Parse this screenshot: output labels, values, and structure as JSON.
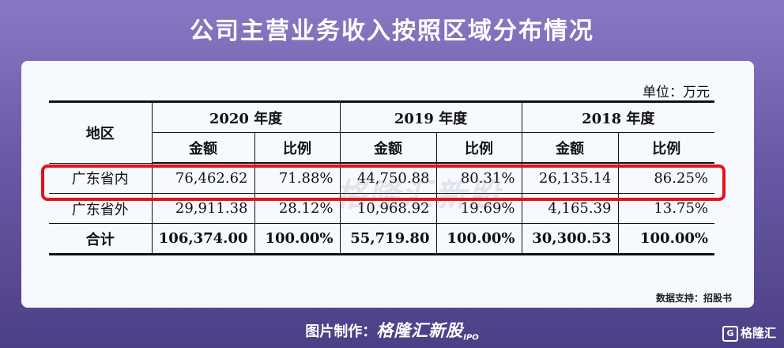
{
  "title": "公司主营业务收入按照区域分布情况",
  "unit": "单位：万元",
  "table": {
    "region_header": "地区",
    "years": [
      "2020 年度",
      "2019 年度",
      "2018 年度"
    ],
    "sub_headers": [
      "金额",
      "比例",
      "金额",
      "比例",
      "金额",
      "比例"
    ],
    "rows": [
      {
        "region": "广东省内",
        "cells": [
          "76,462.62",
          "71.88%",
          "44,750.88",
          "80.31%",
          "26,135.14",
          "86.25%"
        ]
      },
      {
        "region": "广东省外",
        "cells": [
          "29,911.38",
          "28.12%",
          "10,968.92",
          "19.69%",
          "4,165.39",
          "13.75%"
        ]
      },
      {
        "region": "合计",
        "cells": [
          "106,374.00",
          "100.00%",
          "55,719.80",
          "100.00%",
          "30,300.53",
          "100.00%"
        ]
      }
    ]
  },
  "watermark": "格隆汇新股",
  "source": "数据支持：招股书",
  "footer": {
    "prefix": "图片制作：",
    "brand": "格隆汇新股",
    "ipo": "IPO"
  },
  "corner_logo": {
    "icon": "G",
    "text": "格隆汇"
  },
  "colors": {
    "highlight": "#e3121a"
  }
}
